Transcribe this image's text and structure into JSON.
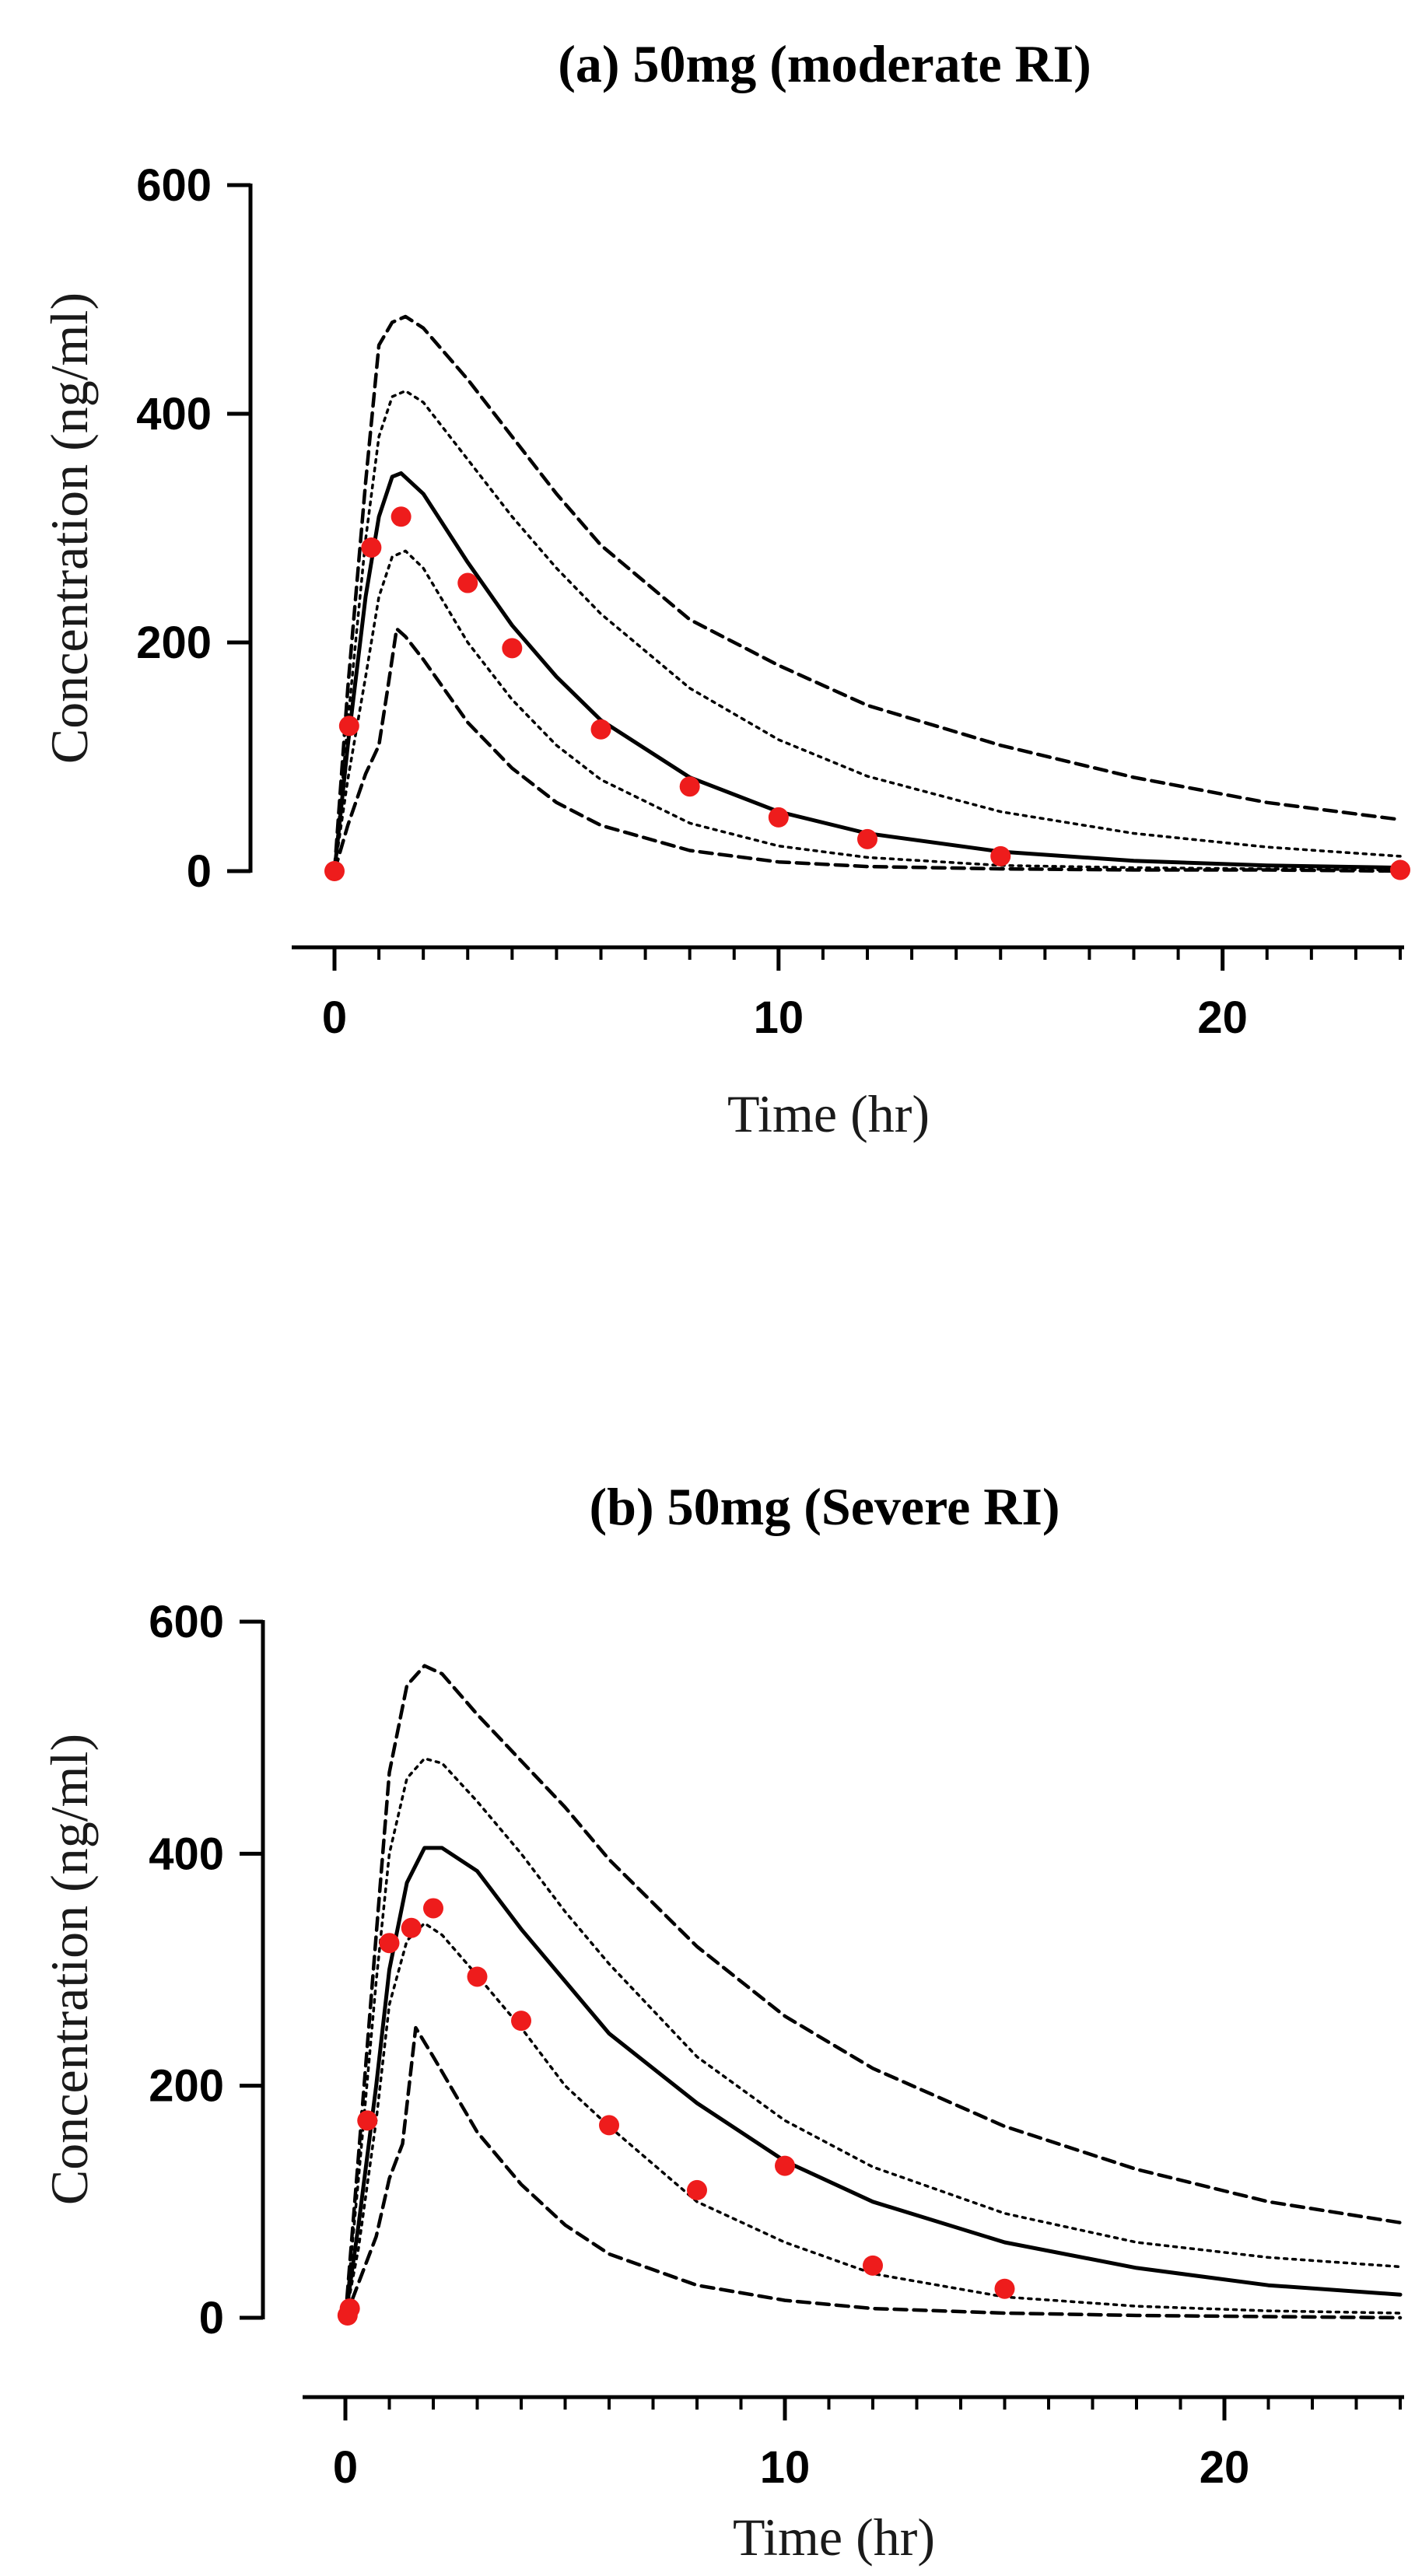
{
  "chart_data": [
    {
      "type": "line",
      "title": "(a) 50mg (moderate RI)",
      "xlabel": "Time (hr)",
      "ylabel": "Concentration (ng/ml)",
      "xlim": [
        0,
        24
      ],
      "ylim": [
        0,
        600
      ],
      "xticks": [
        0,
        10,
        20
      ],
      "xtick_labels": [
        "0",
        "10",
        "20"
      ],
      "x_minor_step": 1,
      "yticks": [
        0,
        200,
        400,
        600
      ],
      "ytick_labels": [
        "0",
        "200",
        "400",
        "600"
      ],
      "grid": false,
      "series": [
        {
          "name": "upper-outer",
          "style": "dashed",
          "x": [
            0,
            0.3,
            0.7,
            1.0,
            1.3,
            1.6,
            2,
            3,
            4,
            5,
            6,
            8,
            10,
            12,
            15,
            18,
            21,
            24
          ],
          "y": [
            0,
            160,
            340,
            460,
            480,
            485,
            475,
            430,
            380,
            330,
            285,
            220,
            180,
            145,
            110,
            82,
            60,
            45
          ]
        },
        {
          "name": "upper-inner",
          "style": "dotted",
          "x": [
            0,
            0.3,
            0.7,
            1.0,
            1.3,
            1.6,
            2,
            3,
            4,
            5,
            6,
            8,
            10,
            12,
            15,
            18,
            21,
            24
          ],
          "y": [
            0,
            130,
            290,
            380,
            415,
            420,
            410,
            360,
            310,
            265,
            225,
            160,
            115,
            83,
            52,
            33,
            21,
            13
          ]
        },
        {
          "name": "median",
          "style": "solid",
          "x": [
            0,
            0.3,
            0.7,
            1.0,
            1.3,
            1.5,
            2,
            3,
            4,
            5,
            6,
            8,
            10,
            12,
            15,
            18,
            21,
            24
          ],
          "y": [
            0,
            110,
            240,
            310,
            345,
            348,
            330,
            270,
            215,
            170,
            132,
            82,
            52,
            33,
            17,
            9,
            5,
            3
          ]
        },
        {
          "name": "lower-inner",
          "style": "dotted",
          "x": [
            0,
            0.3,
            0.7,
            1.0,
            1.3,
            1.6,
            2,
            3,
            4,
            5,
            6,
            8,
            10,
            12,
            15,
            18,
            21,
            24
          ],
          "y": [
            0,
            80,
            170,
            240,
            275,
            280,
            265,
            200,
            150,
            110,
            80,
            42,
            22,
            12,
            5,
            3,
            2,
            1
          ]
        },
        {
          "name": "lower-outer",
          "style": "dashed",
          "x": [
            0,
            0.3,
            0.7,
            1.0,
            1.2,
            1.4,
            1.6,
            2,
            3,
            4,
            5,
            6,
            8,
            10,
            12,
            15,
            18,
            21,
            24
          ],
          "y": [
            0,
            40,
            85,
            110,
            160,
            212,
            205,
            185,
            130,
            90,
            60,
            40,
            18,
            8,
            4,
            2,
            1,
            1,
            0
          ]
        }
      ],
      "observed": {
        "name": "observed",
        "color": "#ee1c1c",
        "x": [
          0,
          0.33,
          0.83,
          1.5,
          3,
          4,
          6,
          8,
          10,
          12,
          15,
          24
        ],
        "y": [
          0,
          127,
          283,
          310,
          252,
          195,
          124,
          74,
          47,
          28,
          13,
          1
        ]
      }
    },
    {
      "type": "line",
      "title": "(b) 50mg (Severe RI)",
      "xlabel": "Time (hr)",
      "ylabel": "Concentration (ng/ml)",
      "xlim": [
        0,
        24
      ],
      "ylim": [
        0,
        600
      ],
      "xticks": [
        0,
        10,
        20
      ],
      "xtick_labels": [
        "0",
        "10",
        "20"
      ],
      "x_minor_step": 1,
      "yticks": [
        0,
        200,
        400,
        600
      ],
      "ytick_labels": [
        "0",
        "200",
        "400",
        "600"
      ],
      "grid": false,
      "series": [
        {
          "name": "upper-outer",
          "style": "dashed",
          "x": [
            0,
            0.3,
            0.7,
            1.0,
            1.4,
            1.8,
            2.2,
            3,
            4,
            5,
            6,
            8,
            10,
            12,
            15,
            18,
            21,
            24
          ],
          "y": [
            0,
            140,
            330,
            470,
            545,
            562,
            555,
            520,
            480,
            440,
            395,
            320,
            260,
            215,
            165,
            128,
            100,
            82
          ]
        },
        {
          "name": "upper-inner",
          "style": "dotted",
          "x": [
            0,
            0.3,
            0.7,
            1.0,
            1.4,
            1.8,
            2.2,
            3,
            4,
            5,
            6,
            8,
            10,
            12,
            15,
            18,
            21,
            24
          ],
          "y": [
            0,
            120,
            290,
            400,
            465,
            482,
            478,
            445,
            400,
            350,
            305,
            225,
            170,
            130,
            90,
            65,
            52,
            44
          ]
        },
        {
          "name": "median",
          "style": "solid",
          "x": [
            0,
            0.3,
            0.7,
            1.0,
            1.4,
            1.8,
            2.2,
            3,
            4,
            5,
            6,
            8,
            10,
            12,
            15,
            18,
            21,
            24
          ],
          "y": [
            0,
            80,
            200,
            300,
            375,
            405,
            405,
            385,
            335,
            290,
            245,
            185,
            135,
            100,
            65,
            43,
            28,
            20
          ]
        },
        {
          "name": "lower-inner",
          "style": "dotted",
          "x": [
            0,
            0.3,
            0.7,
            1.0,
            1.4,
            1.8,
            2.2,
            3,
            4,
            5,
            6,
            8,
            10,
            12,
            15,
            18,
            21,
            24
          ],
          "y": [
            0,
            60,
            170,
            270,
            325,
            340,
            330,
            295,
            250,
            200,
            165,
            100,
            65,
            38,
            18,
            10,
            6,
            4
          ]
        },
        {
          "name": "lower-outer",
          "style": "dashed",
          "x": [
            0,
            0.3,
            0.7,
            1.0,
            1.3,
            1.6,
            2,
            3,
            4,
            5,
            6,
            8,
            10,
            12,
            15,
            18,
            21,
            24
          ],
          "y": [
            0,
            30,
            70,
            120,
            150,
            250,
            225,
            160,
            115,
            80,
            55,
            28,
            15,
            8,
            4,
            2,
            1,
            0
          ]
        }
      ],
      "observed": {
        "name": "observed",
        "color": "#ee1c1c",
        "x": [
          0.05,
          0.1,
          0.5,
          1.0,
          1.5,
          2.0,
          3,
          4,
          6,
          8,
          10,
          12,
          15
        ],
        "y": [
          2,
          8,
          170,
          323,
          336,
          353,
          294,
          256,
          166,
          110,
          131,
          45,
          25
        ]
      }
    }
  ]
}
